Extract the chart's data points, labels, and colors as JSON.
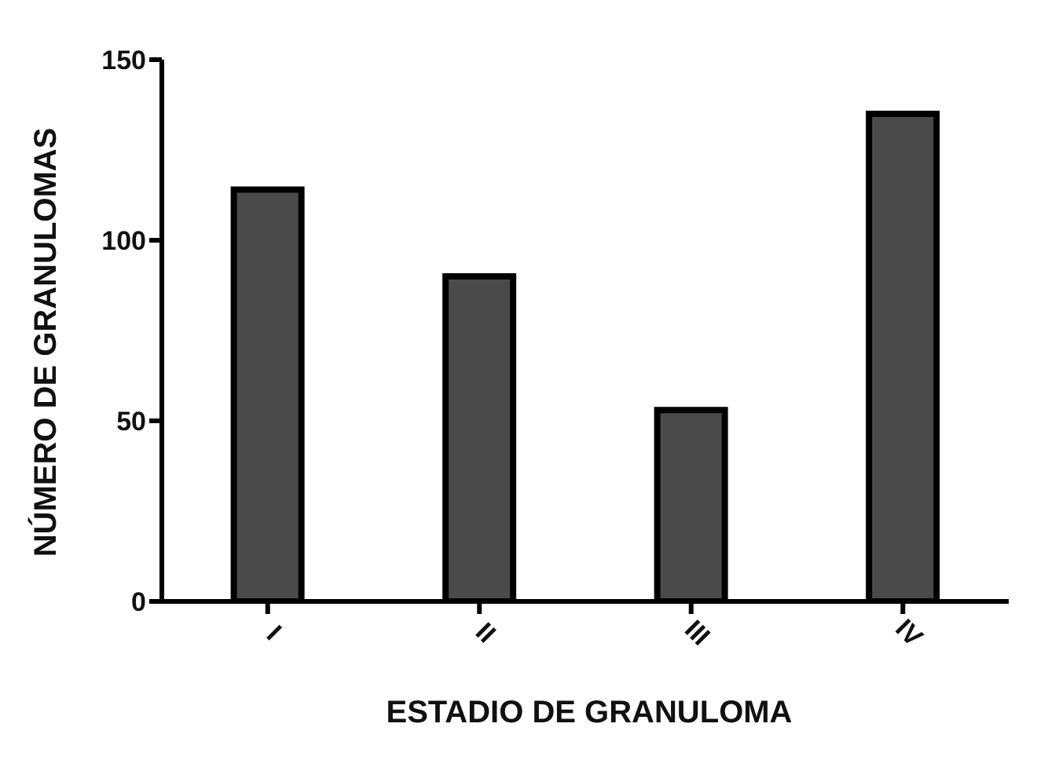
{
  "chart_data": {
    "type": "bar",
    "xlabel": "ESTADIO DE GRANULOMA",
    "ylabel": "NÚMERO DE GRANULOMAS",
    "categories": [
      "I",
      "II",
      "III",
      "IV"
    ],
    "values": [
      114,
      90,
      53,
      135
    ],
    "color": "#4a4a4a",
    "ylim": [
      0,
      150
    ],
    "yticks": [
      0,
      50,
      100,
      150
    ],
    "grid": false,
    "legend": false
  }
}
